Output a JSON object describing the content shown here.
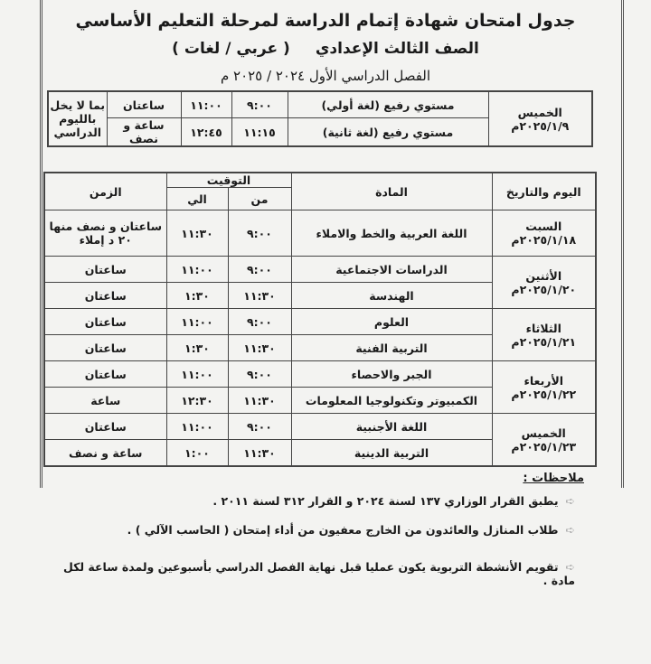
{
  "header": {
    "title": "جدول امتحان شهادة إتمام الدراسة لمرحلة التعليم الأساسي",
    "grade": "الصف الثالث الإعدادي",
    "track": "( عربي / لغات )",
    "term": "الفصل الدراسي الأول ٢٠٢٤ / ٢٠٢٥ م"
  },
  "advanced_level": {
    "day": "الخميس",
    "date": "٢٠٢٥/١/٩م",
    "rows": [
      {
        "subject": "مستوي رفيع (لغة أولي)",
        "from": "٩:٠٠",
        "to": "١١:٠٠",
        "duration": "ساعتان"
      },
      {
        "subject": "مستوي رفيع (لغة ثانية)",
        "from": "١١:١٥",
        "to": "١٢:٤٥",
        "duration": "ساعة و نصف"
      }
    ],
    "note": "بما لا يخل بالليوم الدراسي"
  },
  "schedule": {
    "headers": {
      "day_date": "اليوم والتاريخ",
      "subject": "المادة",
      "timing": "التوقيت",
      "from": "من",
      "to": "الي",
      "duration": "الزمن"
    },
    "days": [
      {
        "day": "السبت",
        "date": "٢٠٢٥/١/١٨م",
        "rows": [
          {
            "subject": "اللغة العربية والخط والاملاء",
            "from": "٩:٠٠",
            "to": "١١:٣٠",
            "duration": "ساعتان و نصف منها ٢٠ د إملاء"
          }
        ]
      },
      {
        "day": "الأثنين",
        "date": "٢٠٢٥/١/٢٠م",
        "rows": [
          {
            "subject": "الدراسات الاجتماعية",
            "from": "٩:٠٠",
            "to": "١١:٠٠",
            "duration": "ساعتان"
          },
          {
            "subject": "الهندسة",
            "from": "١١:٣٠",
            "to": "١:٣٠",
            "duration": "ساعتان"
          }
        ]
      },
      {
        "day": "الثلاثاء",
        "date": "٢٠٢٥/١/٢١م",
        "rows": [
          {
            "subject": "العلوم",
            "from": "٩:٠٠",
            "to": "١١:٠٠",
            "duration": "ساعتان"
          },
          {
            "subject": "التربية الفنية",
            "from": "١١:٣٠",
            "to": "١:٣٠",
            "duration": "ساعتان"
          }
        ]
      },
      {
        "day": "الأربعاء",
        "date": "٢٠٢٥/١/٢٢م",
        "rows": [
          {
            "subject": "الجبر والاحصاء",
            "from": "٩:٠٠",
            "to": "١١:٠٠",
            "duration": "ساعتان"
          },
          {
            "subject": "الكمبيوتر وتكنولوجيا المعلومات",
            "from": "١١:٣٠",
            "to": "١٢:٣٠",
            "duration": "ساعة"
          }
        ]
      },
      {
        "day": "الخميس",
        "date": "٢٠٢٥/١/٢٣م",
        "rows": [
          {
            "subject": "اللغة الأجنبية",
            "from": "٩:٠٠",
            "to": "١١:٠٠",
            "duration": "ساعتان"
          },
          {
            "subject": "التربية الدينية",
            "from": "١١:٣٠",
            "to": "١:٠٠",
            "duration": "ساعة و نصف"
          }
        ]
      }
    ]
  },
  "notes": {
    "heading": "ملاحظات :",
    "items": [
      "يطبق القرار الوزاري ١٣٧ لسنة ٢٠٢٤ و القرار ٣١٢ لسنة ٢٠١١ .",
      "طلاب المنازل والعائدون من الخارج معفيون من أداء إمتحان ( الحاسب الآلي ) .",
      "تقويم الأنشطة التربوية يكون عمليا قبل نهاية الفصل الدراسي بأسبوعين ولمدة ساعة لكل مادة ."
    ]
  }
}
